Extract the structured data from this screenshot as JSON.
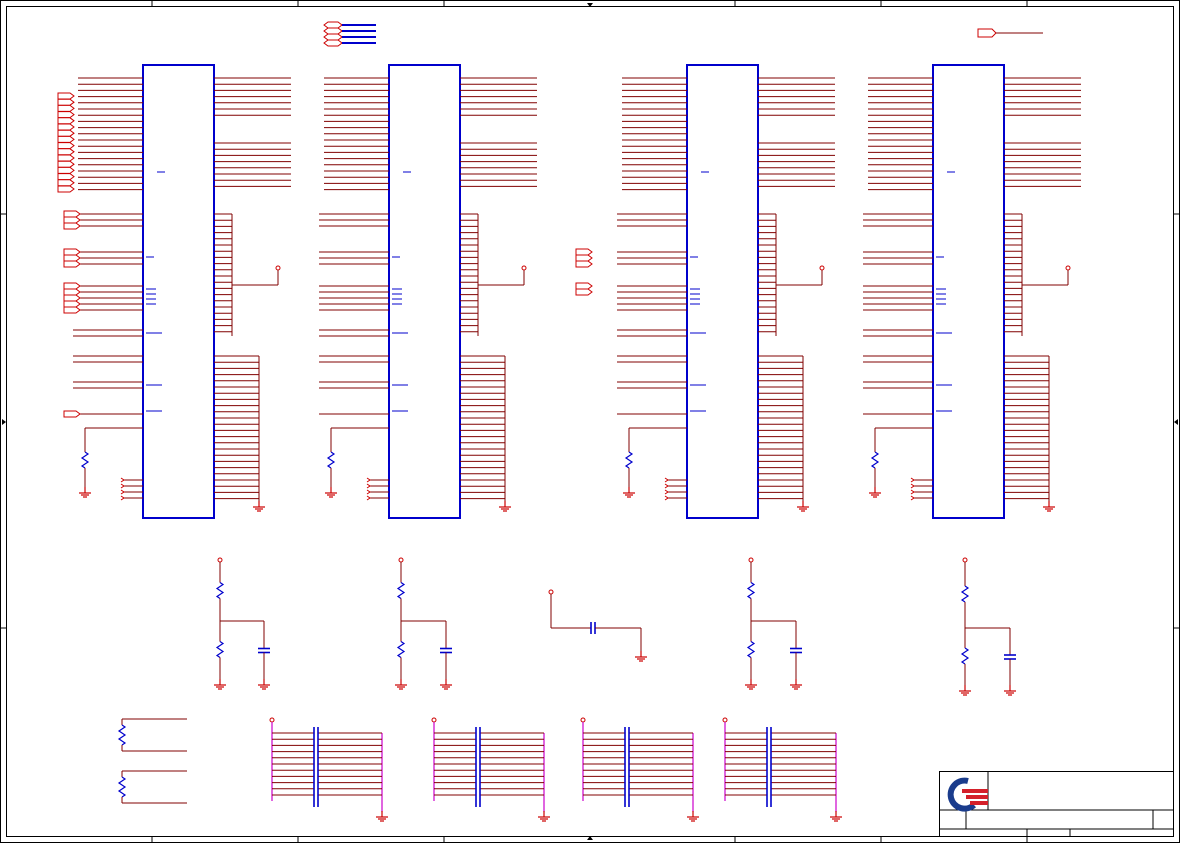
{
  "sheet": {
    "title_block": {
      "logo": "company-logo",
      "title": "",
      "sheet_no": "",
      "rev": ""
    }
  },
  "colors": {
    "frame": "#000000",
    "component_body": "#0000cc",
    "wire": "#800000",
    "power_symbol": "#cc0000",
    "logo_blue": "#1a3c8c",
    "logo_red": "#d4202a"
  }
}
